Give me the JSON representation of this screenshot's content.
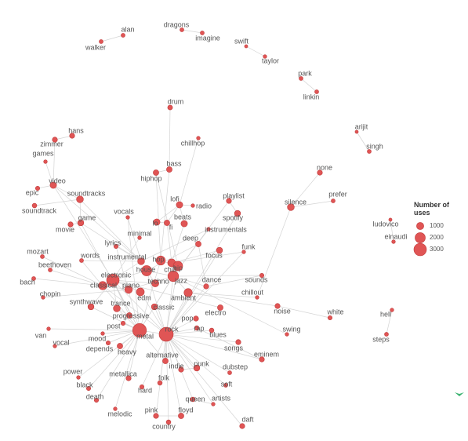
{
  "legend": {
    "title": "Number of uses",
    "sizes": [
      1000,
      2000,
      3000
    ]
  },
  "nodes": [
    {
      "label": "alan",
      "uses": 300
    },
    {
      "label": "walker",
      "uses": 300
    },
    {
      "label": "dragons",
      "uses": 300
    },
    {
      "label": "imagine",
      "uses": 300
    },
    {
      "label": "swift",
      "uses": 200
    },
    {
      "label": "taylor",
      "uses": 250
    },
    {
      "label": "park",
      "uses": 300
    },
    {
      "label": "linkin",
      "uses": 300
    },
    {
      "label": "drum",
      "uses": 450
    },
    {
      "label": "chillhop",
      "uses": 250
    },
    {
      "label": "arijit",
      "uses": 200
    },
    {
      "label": "singh",
      "uses": 300
    },
    {
      "label": "hans",
      "uses": 500
    },
    {
      "label": "zimmer",
      "uses": 500
    },
    {
      "label": "games",
      "uses": 250
    },
    {
      "label": "video",
      "uses": 800
    },
    {
      "label": "epic",
      "uses": 350
    },
    {
      "label": "soundtrack",
      "uses": 400
    },
    {
      "label": "soundtracks",
      "uses": 900
    },
    {
      "label": "game",
      "uses": 700
    },
    {
      "label": "movie",
      "uses": 500
    },
    {
      "label": "bass",
      "uses": 600
    },
    {
      "label": "hiphop",
      "uses": 600
    },
    {
      "label": "none",
      "uses": 500
    },
    {
      "label": "prefer",
      "uses": 300
    },
    {
      "label": "silence",
      "uses": 900
    },
    {
      "label": "lofi",
      "uses": 800
    },
    {
      "label": "radio",
      "uses": 250
    },
    {
      "label": "playlist",
      "uses": 500
    },
    {
      "label": "vocals",
      "uses": 250
    },
    {
      "label": "beats",
      "uses": 800
    },
    {
      "label": "spotify",
      "uses": 700
    },
    {
      "label": "lo",
      "uses": 800
    },
    {
      "label": "fi",
      "uses": 600
    },
    {
      "label": "instrumentals",
      "uses": 250
    },
    {
      "label": "minimal",
      "uses": 250
    },
    {
      "label": "lyrics",
      "uses": 350
    },
    {
      "label": "deep",
      "uses": 600
    },
    {
      "label": "funk",
      "uses": 250
    },
    {
      "label": "ludovico",
      "uses": 200
    },
    {
      "label": "einaudi",
      "uses": 250
    },
    {
      "label": "mozart",
      "uses": 300
    },
    {
      "label": "words",
      "uses": 300
    },
    {
      "label": "instrumental",
      "uses": 900
    },
    {
      "label": "hop",
      "uses": 1600
    },
    {
      "label": "chill",
      "uses": 1200
    },
    {
      "label": "hip",
      "uses": 1700
    },
    {
      "label": "focus",
      "uses": 700
    },
    {
      "label": "beethoven",
      "uses": 300
    },
    {
      "label": "house",
      "uses": 2000
    },
    {
      "label": "bach",
      "uses": 300
    },
    {
      "label": "electronic",
      "uses": 3000
    },
    {
      "label": "techno",
      "uses": 1000
    },
    {
      "label": "jazz",
      "uses": 2200
    },
    {
      "label": "dance",
      "uses": 500
    },
    {
      "label": "sounds",
      "uses": 350
    },
    {
      "label": "classical",
      "uses": 1300
    },
    {
      "label": "piano",
      "uses": 1100
    },
    {
      "label": "chopin",
      "uses": 250
    },
    {
      "label": "edm",
      "uses": 1200
    },
    {
      "label": "chillout",
      "uses": 250
    },
    {
      "label": "ambient",
      "uses": 1300
    },
    {
      "label": "synthwave",
      "uses": 700
    },
    {
      "label": "trance",
      "uses": 900
    },
    {
      "label": "classic",
      "uses": 700
    },
    {
      "label": "noise",
      "uses": 500
    },
    {
      "label": "white",
      "uses": 350
    },
    {
      "label": "electro",
      "uses": 600
    },
    {
      "label": "progressive",
      "uses": 600
    },
    {
      "label": "pop",
      "uses": 500
    },
    {
      "label": "post",
      "uses": 350
    },
    {
      "label": "rap",
      "uses": 400
    },
    {
      "label": "swing",
      "uses": 250
    },
    {
      "label": "hell",
      "uses": 250
    },
    {
      "label": "van",
      "uses": 250
    },
    {
      "label": "metal",
      "uses": 3600
    },
    {
      "label": "rock",
      "uses": 3800
    },
    {
      "label": "blues",
      "uses": 400
    },
    {
      "label": "mood",
      "uses": 250
    },
    {
      "label": "steps",
      "uses": 300
    },
    {
      "label": "vocal",
      "uses": 250
    },
    {
      "label": "depends",
      "uses": 350
    },
    {
      "label": "songs",
      "uses": 500
    },
    {
      "label": "heavy",
      "uses": 600
    },
    {
      "label": "alternative",
      "uses": 600
    },
    {
      "label": "eminem",
      "uses": 500
    },
    {
      "label": "punk",
      "uses": 700
    },
    {
      "label": "indie",
      "uses": 500
    },
    {
      "label": "dubstep",
      "uses": 300
    },
    {
      "label": "power",
      "uses": 250
    },
    {
      "label": "metallica",
      "uses": 500
    },
    {
      "label": "folk",
      "uses": 400
    },
    {
      "label": "soft",
      "uses": 300
    },
    {
      "label": "black",
      "uses": 350
    },
    {
      "label": "hard",
      "uses": 350
    },
    {
      "label": "death",
      "uses": 350
    },
    {
      "label": "queen",
      "uses": 400
    },
    {
      "label": "artists",
      "uses": 250
    },
    {
      "label": "melodic",
      "uses": 250
    },
    {
      "label": "pink",
      "uses": 500
    },
    {
      "label": "floyd",
      "uses": 600
    },
    {
      "label": "daft",
      "uses": 500
    },
    {
      "label": "country",
      "uses": 400
    }
  ]
}
